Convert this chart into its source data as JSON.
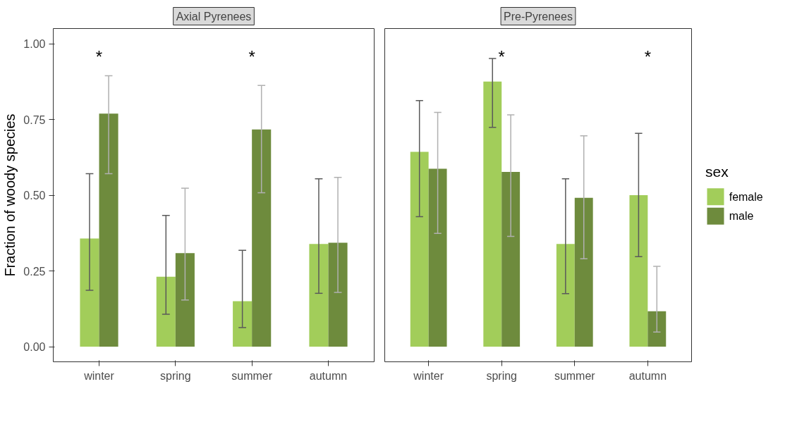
{
  "chart_data": [
    {
      "type": "bar",
      "title": "Axial Pyrenees",
      "ylabel": "Fraction of woody species",
      "categories": [
        "winter",
        "spring",
        "summer",
        "autumn"
      ],
      "ylim": [
        -0.05,
        1.05
      ],
      "yticks": [
        {
          "value": 0,
          "label": "0.00"
        },
        {
          "value": 0.25,
          "label": "0.25"
        },
        {
          "value": 0.5,
          "label": "0.50"
        },
        {
          "value": 0.75,
          "label": "0.75"
        },
        {
          "value": 1,
          "label": "1.00"
        }
      ],
      "grid": false,
      "series": [
        {
          "color": "#a2cd5a",
          "values": [
            0.357,
            0.231,
            0.15,
            0.339
          ],
          "errors": [
            [
              0.186,
              0.571
            ],
            [
              0.107,
              0.433
            ],
            [
              0.063,
              0.318
            ],
            [
              0.176,
              0.554
            ]
          ]
        },
        {
          "color": "#6e8b3d",
          "values": [
            0.769,
            0.309,
            0.717,
            0.343
          ],
          "errors": [
            [
              0.571,
              0.894
            ],
            [
              0.154,
              0.523
            ],
            [
              0.508,
              0.862
            ],
            [
              0.179,
              0.559
            ]
          ]
        }
      ],
      "annotations": [
        "*",
        "*"
      ]
    },
    {
      "type": "bar",
      "title": "Pre-Pyrenees",
      "categories": [
        "winter",
        "spring",
        "summer",
        "autumn"
      ],
      "ylim": [
        -0.05,
        1.05
      ],
      "tick_labels": "x",
      "grid": false,
      "legend": "right",
      "legend_title": "sex",
      "series": [
        {
          "name": "female",
          "color": "#a2cd5a",
          "values": [
            0.643,
            0.875,
            0.339,
            0.5
          ],
          "errors": [
            [
              0.429,
              0.812
            ],
            [
              0.724,
              0.951
            ],
            [
              0.175,
              0.554
            ],
            [
              0.297,
              0.704
            ]
          ]
        },
        {
          "name": "male",
          "color": "#6e8b3d",
          "values": [
            0.587,
            0.577,
            0.491,
            0.117
          ],
          "errors": [
            [
              0.374,
              0.773
            ],
            [
              0.364,
              0.765
            ],
            [
              0.29,
              0.696
            ],
            [
              0.048,
              0.265
            ]
          ]
        }
      ],
      "annotations": [
        "*",
        "*"
      ]
    }
  ]
}
